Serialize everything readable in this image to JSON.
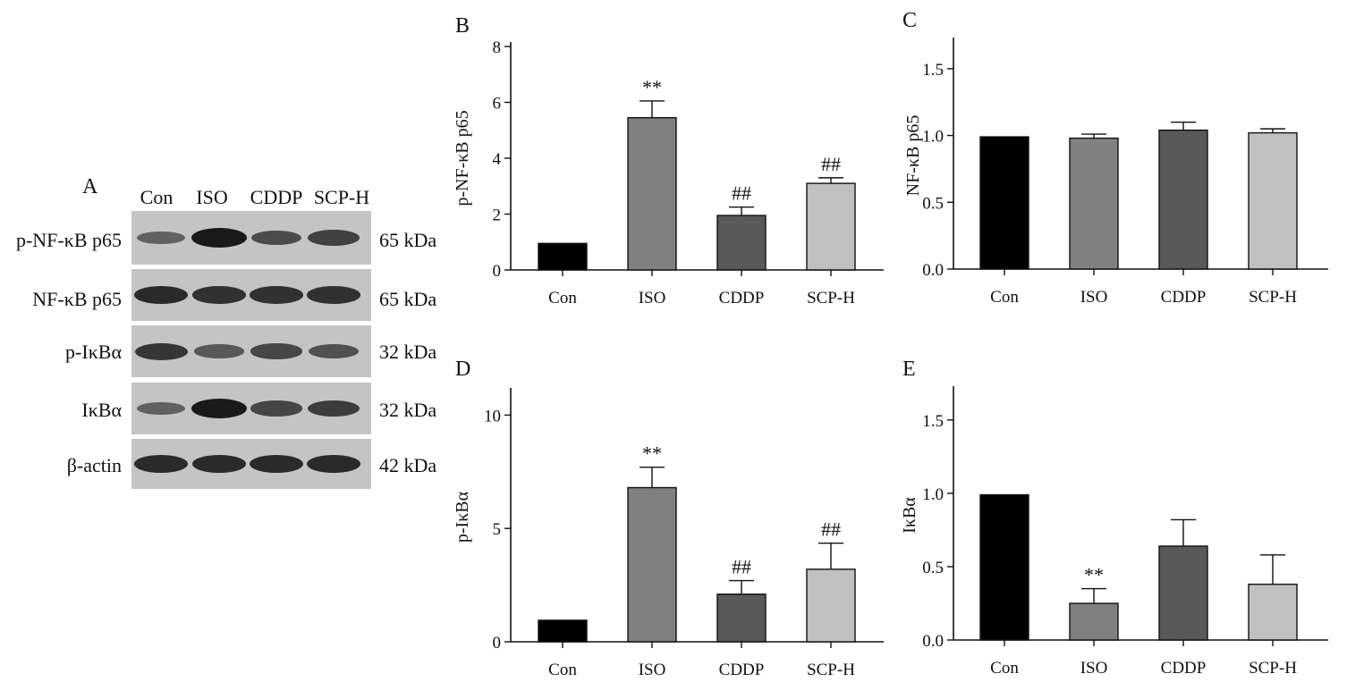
{
  "western_blot": {
    "panel_letter": "A",
    "lanes": [
      "Con",
      "ISO",
      "CDDP",
      "SCP-H"
    ],
    "rows": [
      {
        "label": "p-NF-κB p65",
        "kda": "65 kDa",
        "intensity": [
          0.35,
          1.0,
          0.55,
          0.65
        ]
      },
      {
        "label": "NF-κB p65",
        "kda": "65 kDa",
        "intensity": [
          0.85,
          0.8,
          0.8,
          0.8
        ]
      },
      {
        "label": "p-IκBα",
        "kda": "32 kDa",
        "intensity": [
          0.75,
          0.45,
          0.6,
          0.5
        ]
      },
      {
        "label": "IκBα",
        "kda": "32 kDa",
        "intensity": [
          0.35,
          1.0,
          0.6,
          0.7
        ]
      },
      {
        "label": "β-actin",
        "kda": "42 kDa",
        "intensity": [
          0.85,
          0.85,
          0.85,
          0.85
        ]
      }
    ]
  },
  "chart_data": [
    {
      "type": "bar",
      "panel": "B",
      "ylabel": "p-NF-κB p65",
      "xlabel": "",
      "categories": [
        "Con",
        "ISO",
        "CDDP",
        "SCP-H"
      ],
      "values": [
        0.95,
        5.45,
        1.95,
        3.1
      ],
      "errors": [
        0,
        0.6,
        0.3,
        0.2
      ],
      "annotations": [
        "",
        "**",
        "##",
        "##"
      ],
      "ylim": [
        0,
        8
      ],
      "yticks": [
        "0",
        "2",
        "4",
        "6",
        "8"
      ],
      "bar_colors": [
        "#000000",
        "#808080",
        "#595959",
        "#c0c0c0"
      ]
    },
    {
      "type": "bar",
      "panel": "C",
      "ylabel": "NF-κB p65",
      "xlabel": "",
      "categories": [
        "Con",
        "ISO",
        "CDDP",
        "SCP-H"
      ],
      "values": [
        0.99,
        0.98,
        1.04,
        1.02
      ],
      "errors": [
        0,
        0.03,
        0.06,
        0.03
      ],
      "annotations": [
        "",
        "",
        "",
        ""
      ],
      "ylim": [
        0,
        1.7
      ],
      "yticks": [
        "0.0",
        "0.5",
        "1.0",
        "1.5"
      ],
      "bar_colors": [
        "#000000",
        "#808080",
        "#595959",
        "#c0c0c0"
      ]
    },
    {
      "type": "bar",
      "panel": "D",
      "ylabel": "p-IκBα",
      "xlabel": "",
      "categories": [
        "Con",
        "ISO",
        "CDDP",
        "SCP-H"
      ],
      "values": [
        0.95,
        6.8,
        2.1,
        3.2
      ],
      "errors": [
        0,
        0.9,
        0.6,
        1.15
      ],
      "annotations": [
        "",
        "**",
        "##",
        "##"
      ],
      "ylim": [
        0,
        11
      ],
      "yticks": [
        "0",
        "5",
        "10"
      ],
      "bar_colors": [
        "#000000",
        "#808080",
        "#595959",
        "#c0c0c0"
      ]
    },
    {
      "type": "bar",
      "panel": "E",
      "ylabel": "IκBα",
      "xlabel": "",
      "categories": [
        "Con",
        "ISO",
        "CDDP",
        "SCP-H"
      ],
      "values": [
        0.99,
        0.25,
        0.64,
        0.38
      ],
      "errors": [
        0,
        0.1,
        0.18,
        0.2
      ],
      "annotations": [
        "",
        "**",
        "",
        ""
      ],
      "ylim": [
        0,
        1.7
      ],
      "yticks": [
        "0.0",
        "0.5",
        "1.0",
        "1.5"
      ],
      "bar_colors": [
        "#000000",
        "#808080",
        "#595959",
        "#c0c0c0"
      ]
    }
  ]
}
